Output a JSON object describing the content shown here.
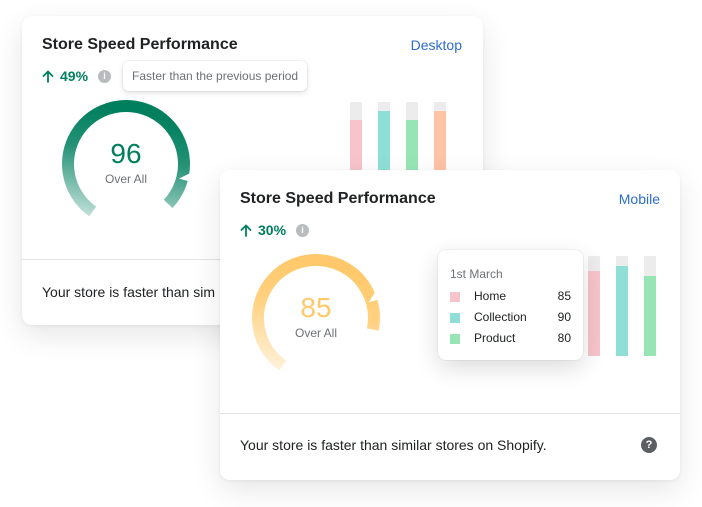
{
  "colors": {
    "green": "#007f5f",
    "link": "#2c6ecb",
    "home": "#f6c4ca",
    "collection": "#8fdfd6",
    "product": "#97e5b5",
    "orange": "#ffc3a6",
    "gauge_yellow": "#ffc96b"
  },
  "desktop_card": {
    "title": "Store Speed Performance",
    "device": "Desktop",
    "change": "49%",
    "change_icon": "arrow-up-icon",
    "tooltip": "Faster than the previous period",
    "score": "96",
    "score_value": 96,
    "score_label": "Over All",
    "footer": "Your store is faster than sim"
  },
  "mobile_card": {
    "title": "Store Speed Performance",
    "device": "Mobile",
    "change": "30%",
    "change_icon": "arrow-up-icon",
    "score": "85",
    "score_value": 85,
    "score_label": "Over All",
    "footer": "Your store is faster than similar stores on Shopify.",
    "legend": {
      "date": "1st March",
      "items": [
        {
          "label": "Home",
          "value": "85"
        },
        {
          "label": "Collection",
          "value": "90"
        },
        {
          "label": "Product",
          "value": "80"
        }
      ]
    }
  },
  "chart_data": [
    {
      "type": "bar",
      "title": "",
      "series": [
        {
          "values": [
            80,
            90,
            80,
            90
          ]
        }
      ],
      "ylim": [
        0,
        100
      ]
    },
    {
      "type": "bar",
      "title": "",
      "categories": [
        "Home",
        "Collection",
        "Product"
      ],
      "values": [
        85,
        90,
        80
      ],
      "ylim": [
        0,
        100
      ]
    }
  ]
}
